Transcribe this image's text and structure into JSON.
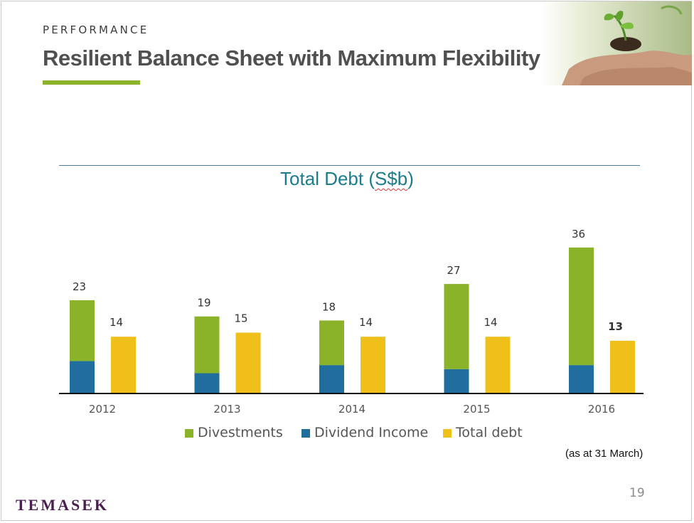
{
  "header": {
    "section_label": "PERFORMANCE",
    "title": "Resilient Balance Sheet with Maximum Flexibility"
  },
  "colors": {
    "accent_green": "#8ab32a",
    "divestments": "#8ab32a",
    "dividend_income": "#1f6e9e",
    "total_debt": "#efbf1a",
    "title_teal": "#1b7d8c",
    "logo_purple": "#4a1e4f"
  },
  "chart_data": {
    "type": "bar",
    "title_main": "Total Debt (",
    "title_unit": "S$b",
    "title_close": ")",
    "categories": [
      "2012",
      "2013",
      "2014",
      "2015",
      "2016"
    ],
    "series": [
      {
        "name": "Divestments",
        "values": [
          15,
          14,
          11,
          21,
          29
        ],
        "stack": "a",
        "color": "#8ab32a"
      },
      {
        "name": "Dividend Income",
        "values": [
          8,
          5,
          7,
          6,
          7
        ],
        "stack": "a",
        "color": "#1f6e9e"
      },
      {
        "name": "Total debt",
        "values": [
          14,
          15,
          14,
          14,
          13
        ],
        "stack": "b",
        "color": "#efbf1a"
      }
    ],
    "stack_totals": [
      23,
      19,
      18,
      27,
      36
    ],
    "total_debt_labels": [
      14,
      15,
      14,
      14,
      13
    ],
    "ylim": [
      0,
      36
    ],
    "grid": false,
    "legend_position": "bottom"
  },
  "footer": {
    "note": "(as at 31 March)",
    "page_number": "19",
    "logo_text": "TEMASEK"
  },
  "hero_image": {
    "icon": "seedling-in-hands-photo"
  }
}
